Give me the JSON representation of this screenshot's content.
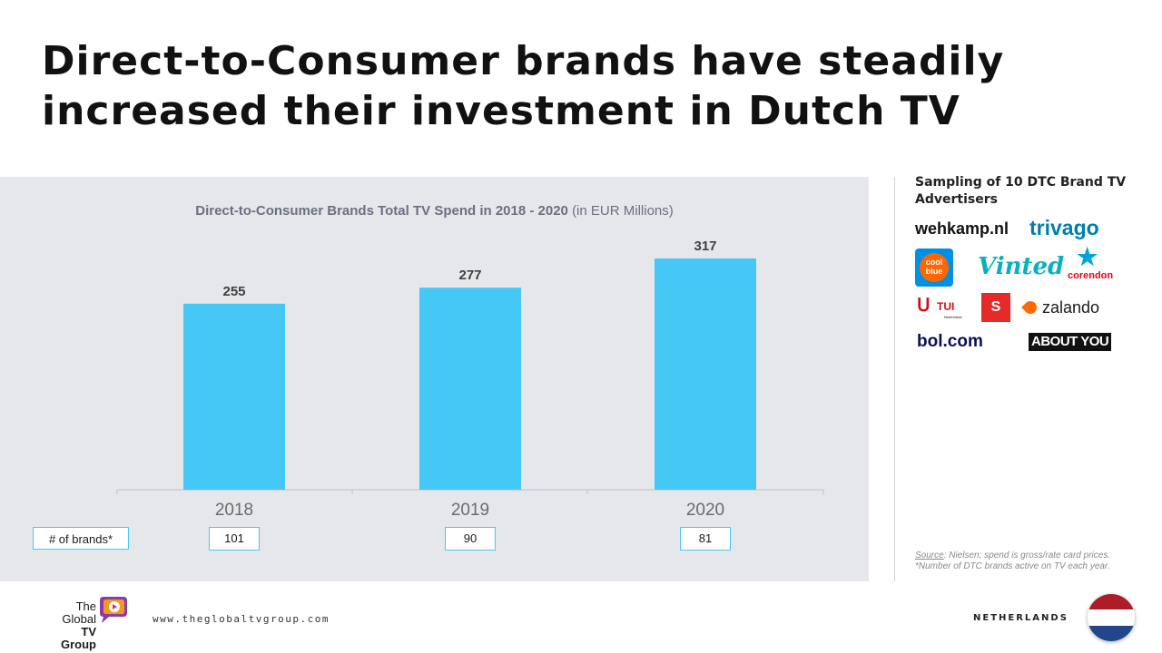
{
  "slide": {
    "title": "Direct-to-Consumer brands have steadily increased their investment in Dutch TV"
  },
  "chart_data": {
    "type": "bar",
    "title": "Direct-to-Consumer Brands Total TV Spend in 2018 - 2020",
    "subtitle": "(in EUR Millions)",
    "categories": [
      "2018",
      "2019",
      "2020"
    ],
    "values": [
      255,
      277,
      317
    ],
    "ylim": [
      0,
      317
    ],
    "xlabel": "",
    "ylabel": "",
    "grid": false,
    "bar_color": "#45c8f5",
    "brand_count_label": "# of brands*",
    "brand_counts": [
      "101",
      "90",
      "81"
    ]
  },
  "sidebar": {
    "title": "Sampling of 10 DTC Brand TV Advertisers",
    "logos": {
      "wehkamp": "wehkamp.nl",
      "trivago": "trivago",
      "coolblue_line1": "cool",
      "coolblue_line2": "blue",
      "vinted": "Vinted",
      "corendon": "corendon",
      "tui": "TUI",
      "tui_sub": "Nederland",
      "sbs": "S",
      "zalando": "zalando",
      "bol": "bol.com",
      "aboutyou": "ABOUT YOU"
    },
    "source_label": "Source",
    "source_text": ": Nielsen; spend is gross/rate card prices.",
    "footnote": "*Number of DTC brands active on TV each year."
  },
  "footer": {
    "logo_line1": "The",
    "logo_line2": "Global",
    "logo_line3": "TV Group",
    "url": "www.theglobaltvgroup.com",
    "country": "NETHERLANDS"
  },
  "colors": {
    "accent": "#45c8f5",
    "panel": "#e6e7eb",
    "flag_red": "#ae1c28",
    "flag_white": "#ffffff",
    "flag_blue": "#21468b"
  }
}
